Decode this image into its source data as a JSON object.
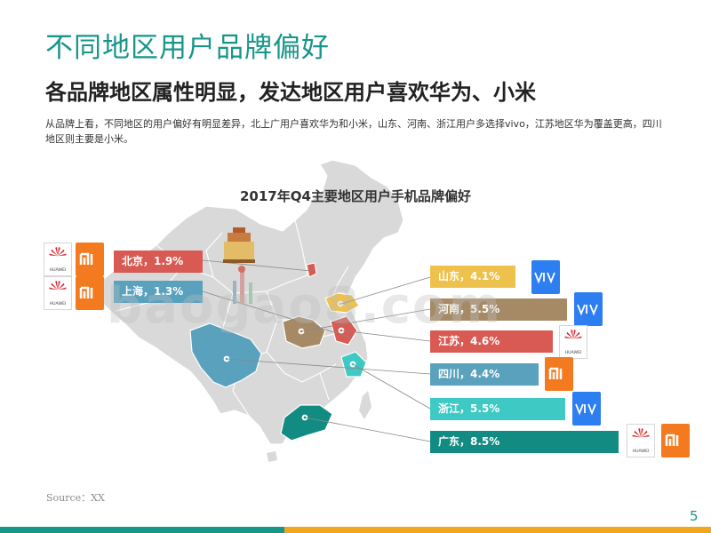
{
  "slide": {
    "title": "不同地区用户品牌偏好",
    "subtitle": "各品牌地区属性明显，发达地区用户喜欢华为、小米",
    "description": "从品牌上看，不同地区的用户偏好有明显差异，北上广用户喜欢华为和小米，山东、河南、浙江用户多选择vivo，江苏地区华为覆盖更高，四川地区则主要是小米。",
    "chart_title": "2017年Q4主要地区用户手机品牌偏好",
    "source": "Source：XX",
    "page_number": "5",
    "watermark": "baogao8.com"
  },
  "regions_left": [
    {
      "label": "北京，1.9%",
      "color": "#d85a52",
      "logos": [
        "huawei",
        "xiaomi"
      ]
    },
    {
      "label": "上海，1.3%",
      "color": "#5aa1bd",
      "logos": [
        "huawei",
        "xiaomi"
      ]
    }
  ],
  "regions_right": [
    {
      "label": "山东，4.1%",
      "color": "#eec14c",
      "logos": [
        "vivo"
      ]
    },
    {
      "label": "河南，5.5%",
      "color": "#a68a66",
      "logos": [
        "vivo"
      ]
    },
    {
      "label": "江苏，4.6%",
      "color": "#d85a52",
      "logos": [
        "huawei"
      ]
    },
    {
      "label": "四川，4.4%",
      "color": "#5aa1bd",
      "logos": [
        "xiaomi"
      ]
    },
    {
      "label": "浙江，5.5%",
      "color": "#3ec9c4",
      "logos": [
        "vivo"
      ]
    },
    {
      "label": "广东，8.5%",
      "color": "#128c82",
      "logos": [
        "huawei",
        "xiaomi"
      ]
    }
  ],
  "brands": {
    "huawei": {
      "name": "HUAWEI",
      "color": "#d7282f"
    },
    "xiaomi": {
      "icon": "mi-icon",
      "color": "#f47a20"
    },
    "vivo": {
      "icon": "vivo-icon",
      "color": "#2d7ef0"
    }
  },
  "colors": {
    "accent": "#17968a",
    "footer_secondary": "#f0a61f",
    "map_base": "#d9d9d9"
  }
}
